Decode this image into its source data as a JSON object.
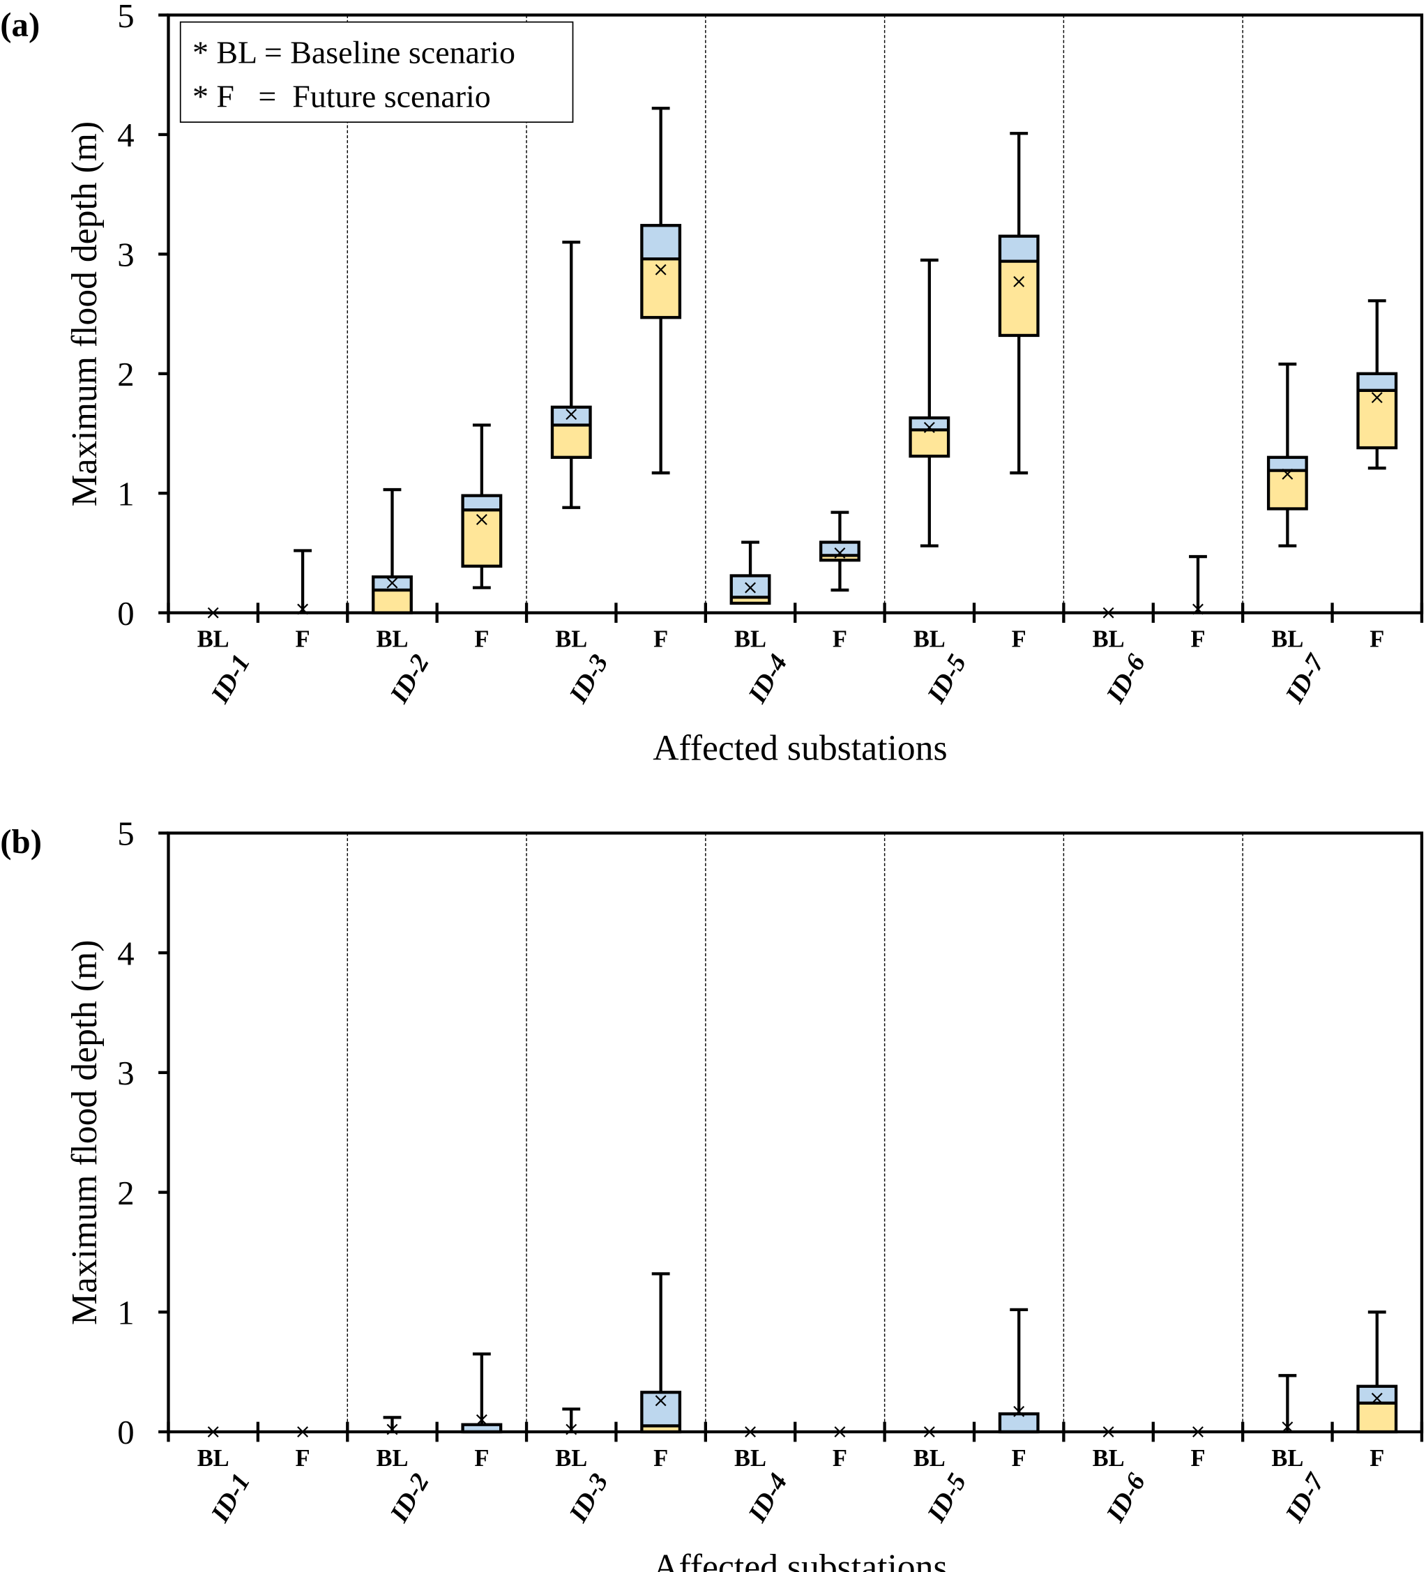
{
  "colors": {
    "upper_box": "#bdd7ee",
    "lower_box": "#ffe699",
    "line": "#000000"
  },
  "chart_data": [
    {
      "type": "box",
      "panel_label": "(a)",
      "xlabel": "Affected substations",
      "ylabel": "Maximum flood depth (m)",
      "ylim": [
        0,
        5
      ],
      "yticks": [
        "0",
        "1",
        "2",
        "3",
        "4",
        "5"
      ],
      "groups": [
        "ID-1",
        "ID-2",
        "ID-3",
        "ID-4",
        "ID-5",
        "ID-6",
        "ID-7"
      ],
      "scenarios": [
        "BL",
        "F"
      ],
      "legend": [
        "* BL = Baseline scenario",
        "* F   =  Future scenario"
      ],
      "legend_position": "top-left",
      "boxes": [
        {
          "group": "ID-1",
          "scenario": "BL",
          "min": 0,
          "q1": 0,
          "median": 0,
          "q3": 0,
          "max": 0,
          "mean": 0
        },
        {
          "group": "ID-1",
          "scenario": "F",
          "min": 0,
          "q1": 0,
          "median": 0,
          "q3": 0,
          "max": 0.52,
          "mean": 0.03
        },
        {
          "group": "ID-2",
          "scenario": "BL",
          "min": 0,
          "q1": 0,
          "median": 0.19,
          "q3": 0.3,
          "max": 1.03,
          "mean": 0.25
        },
        {
          "group": "ID-2",
          "scenario": "F",
          "min": 0.21,
          "q1": 0.39,
          "median": 0.86,
          "q3": 0.98,
          "max": 1.57,
          "mean": 0.78
        },
        {
          "group": "ID-3",
          "scenario": "BL",
          "min": 0.88,
          "q1": 1.3,
          "median": 1.57,
          "q3": 1.72,
          "max": 3.1,
          "mean": 1.66
        },
        {
          "group": "ID-3",
          "scenario": "F",
          "min": 1.17,
          "q1": 2.47,
          "median": 2.96,
          "q3": 3.24,
          "max": 4.22,
          "mean": 2.87
        },
        {
          "group": "ID-4",
          "scenario": "BL",
          "min": 0.08,
          "q1": 0.08,
          "median": 0.13,
          "q3": 0.31,
          "max": 0.59,
          "mean": 0.21
        },
        {
          "group": "ID-4",
          "scenario": "F",
          "min": 0.19,
          "q1": 0.44,
          "median": 0.48,
          "q3": 0.59,
          "max": 0.84,
          "mean": 0.5
        },
        {
          "group": "ID-5",
          "scenario": "BL",
          "min": 0.56,
          "q1": 1.31,
          "median": 1.53,
          "q3": 1.63,
          "max": 2.95,
          "mean": 1.55
        },
        {
          "group": "ID-5",
          "scenario": "F",
          "min": 1.17,
          "q1": 2.32,
          "median": 2.94,
          "q3": 3.15,
          "max": 4.01,
          "mean": 2.77
        },
        {
          "group": "ID-6",
          "scenario": "BL",
          "min": 0,
          "q1": 0,
          "median": 0,
          "q3": 0,
          "max": 0,
          "mean": 0
        },
        {
          "group": "ID-6",
          "scenario": "F",
          "min": 0,
          "q1": 0,
          "median": 0,
          "q3": 0,
          "max": 0.47,
          "mean": 0.03
        },
        {
          "group": "ID-7",
          "scenario": "BL",
          "min": 0.56,
          "q1": 0.87,
          "median": 1.19,
          "q3": 1.3,
          "max": 2.08,
          "mean": 1.16
        },
        {
          "group": "ID-7",
          "scenario": "F",
          "min": 1.21,
          "q1": 1.38,
          "median": 1.86,
          "q3": 2.0,
          "max": 2.61,
          "mean": 1.8
        }
      ]
    },
    {
      "type": "box",
      "panel_label": "(b)",
      "xlabel": "Affected substations",
      "ylabel": "Maximum flood depth (m)",
      "ylim": [
        0,
        5
      ],
      "yticks": [
        "0",
        "1",
        "2",
        "3",
        "4",
        "5"
      ],
      "groups": [
        "ID-1",
        "ID-2",
        "ID-3",
        "ID-4",
        "ID-5",
        "ID-6",
        "ID-7"
      ],
      "scenarios": [
        "BL",
        "F"
      ],
      "boxes": [
        {
          "group": "ID-1",
          "scenario": "BL",
          "min": 0,
          "q1": 0,
          "median": 0,
          "q3": 0,
          "max": 0,
          "mean": 0
        },
        {
          "group": "ID-1",
          "scenario": "F",
          "min": 0,
          "q1": 0,
          "median": 0,
          "q3": 0,
          "max": 0,
          "mean": 0
        },
        {
          "group": "ID-2",
          "scenario": "BL",
          "min": 0,
          "q1": 0,
          "median": 0,
          "q3": 0,
          "max": 0.12,
          "mean": 0.02
        },
        {
          "group": "ID-2",
          "scenario": "F",
          "min": 0,
          "q1": 0,
          "median": 0,
          "q3": 0.06,
          "max": 0.65,
          "mean": 0.1
        },
        {
          "group": "ID-3",
          "scenario": "BL",
          "min": 0,
          "q1": 0,
          "median": 0,
          "q3": 0,
          "max": 0.19,
          "mean": 0.02
        },
        {
          "group": "ID-3",
          "scenario": "F",
          "min": 0,
          "q1": 0,
          "median": 0.05,
          "q3": 0.33,
          "max": 1.32,
          "mean": 0.26
        },
        {
          "group": "ID-4",
          "scenario": "BL",
          "min": 0,
          "q1": 0,
          "median": 0,
          "q3": 0,
          "max": 0,
          "mean": 0
        },
        {
          "group": "ID-4",
          "scenario": "F",
          "min": 0,
          "q1": 0,
          "median": 0,
          "q3": 0,
          "max": 0,
          "mean": 0
        },
        {
          "group": "ID-5",
          "scenario": "BL",
          "min": 0,
          "q1": 0,
          "median": 0,
          "q3": 0,
          "max": 0,
          "mean": 0
        },
        {
          "group": "ID-5",
          "scenario": "F",
          "min": 0,
          "q1": 0,
          "median": 0,
          "q3": 0.15,
          "max": 1.02,
          "mean": 0.17
        },
        {
          "group": "ID-6",
          "scenario": "BL",
          "min": 0,
          "q1": 0,
          "median": 0,
          "q3": 0,
          "max": 0,
          "mean": 0
        },
        {
          "group": "ID-6",
          "scenario": "F",
          "min": 0,
          "q1": 0,
          "median": 0,
          "q3": 0,
          "max": 0,
          "mean": 0
        },
        {
          "group": "ID-7",
          "scenario": "BL",
          "min": 0,
          "q1": 0,
          "median": 0,
          "q3": 0,
          "max": 0.47,
          "mean": 0.04
        },
        {
          "group": "ID-7",
          "scenario": "F",
          "min": 0,
          "q1": 0,
          "median": 0.24,
          "q3": 0.38,
          "max": 1.0,
          "mean": 0.28
        }
      ]
    }
  ]
}
